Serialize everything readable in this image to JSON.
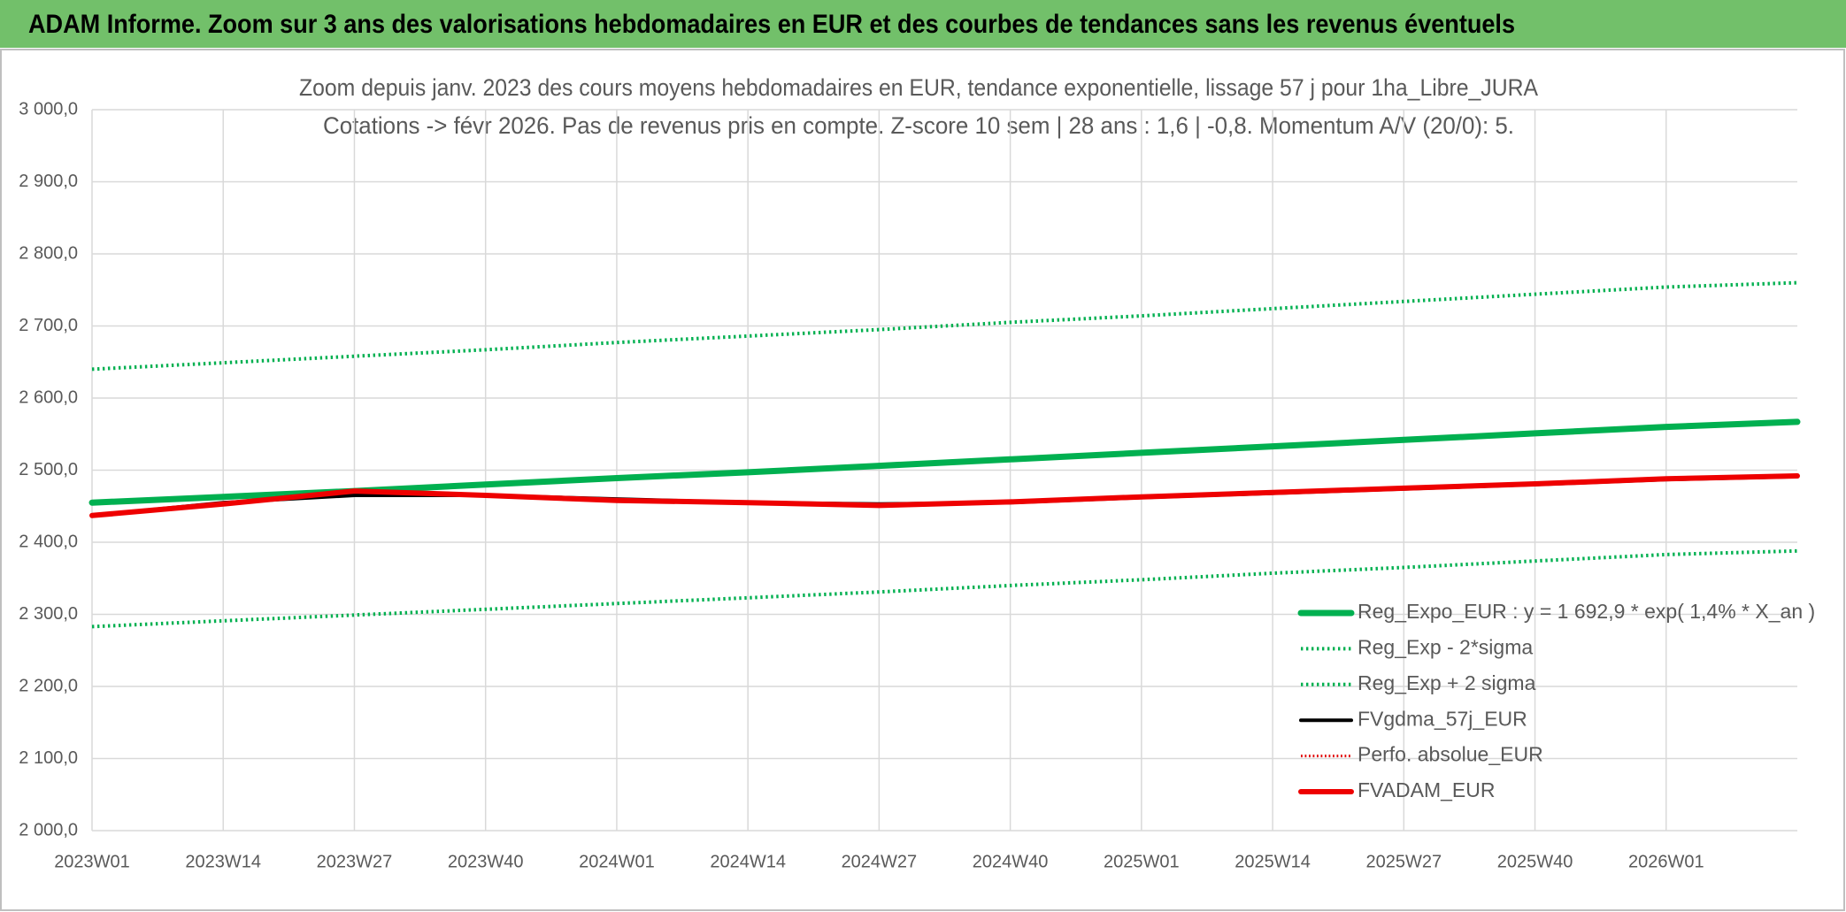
{
  "header": {
    "title": "ADAM Informe. Zoom sur 3 ans des valorisations hebdomadaires en EUR et des courbes de tendances sans les revenus éventuels"
  },
  "chart_data": {
    "type": "line",
    "title": "Zoom depuis janv. 2023 des cours moyens hebdomadaires en EUR, tendance exponentielle, lissage 57 j pour 1ha_Libre_JURA",
    "subtitle": "Cotations -> févr 2026. Pas de revenus pris en compte. Z-score 10 sem | 28 ans : 1,6 | -0,8. Momentum A/V (20/0): 5.",
    "categories": [
      "2023W01",
      "2023W14",
      "2023W27",
      "2023W40",
      "2024W01",
      "2024W14",
      "2024W27",
      "2024W40",
      "2025W01",
      "2025W14",
      "2025W27",
      "2025W40",
      "2026W01",
      null
    ],
    "series": [
      {
        "name": "Reg_Expo_EUR : y = 1 692,9 * exp( 1,4% *  X_an )",
        "color": "#00b050",
        "style": "solid",
        "width": 7,
        "values": [
          2455,
          2463,
          2471,
          2480,
          2489,
          2497,
          2506,
          2515,
          2524,
          2533,
          2542,
          2551,
          2560,
          2567
        ]
      },
      {
        "name": "Reg_Exp - 2*sigma",
        "color": "#00b050",
        "style": "dotted",
        "width": 4,
        "values": [
          2283,
          2291,
          2299,
          2307,
          2315,
          2323,
          2331,
          2340,
          2348,
          2357,
          2365,
          2374,
          2383,
          2388
        ]
      },
      {
        "name": "Reg_Exp + 2 sigma",
        "color": "#00b050",
        "style": "dotted",
        "width": 4,
        "values": [
          2640,
          2649,
          2658,
          2667,
          2677,
          2686,
          2695,
          2705,
          2714,
          2724,
          2734,
          2744,
          2754,
          2760
        ]
      },
      {
        "name": "FVgdma_57j_EUR",
        "color": "#000000",
        "style": "solid",
        "width": 4,
        "values": [
          2437,
          2455,
          2465,
          2465,
          2460,
          2455,
          2453,
          2455,
          2462,
          2468,
          2474,
          2480,
          2487,
          2491
        ]
      },
      {
        "name": "Perfo. absolue_EUR",
        "color": "#e00000",
        "style": "dotted",
        "width": 3,
        "values": [
          2437,
          2453,
          2471,
          2465,
          2458,
          2455,
          2451,
          2456,
          2463,
          2469,
          2475,
          2481,
          2488,
          2492
        ]
      },
      {
        "name": "FVADAM_EUR",
        "color": "#ee0000",
        "style": "solid",
        "width": 6,
        "values": [
          2437,
          2453,
          2471,
          2465,
          2458,
          2455,
          2451,
          2456,
          2463,
          2469,
          2475,
          2481,
          2488,
          2492
        ]
      }
    ],
    "ylim": [
      2000,
      3000
    ],
    "yticks": [
      {
        "value": 2000,
        "label": "2 000,0"
      },
      {
        "value": 2100,
        "label": "2 100,0"
      },
      {
        "value": 2200,
        "label": "2 200,0"
      },
      {
        "value": 2300,
        "label": "2 300,0"
      },
      {
        "value": 2400,
        "label": "2 400,0"
      },
      {
        "value": 2500,
        "label": "2 500,0"
      },
      {
        "value": 2600,
        "label": "2 600,0"
      },
      {
        "value": 2700,
        "label": "2 700,0"
      },
      {
        "value": 2800,
        "label": "2 800,0"
      },
      {
        "value": 2900,
        "label": "2 900,0"
      },
      {
        "value": 3000,
        "label": "3 000,0"
      }
    ],
    "grid": true,
    "legend": "bottom-right"
  }
}
